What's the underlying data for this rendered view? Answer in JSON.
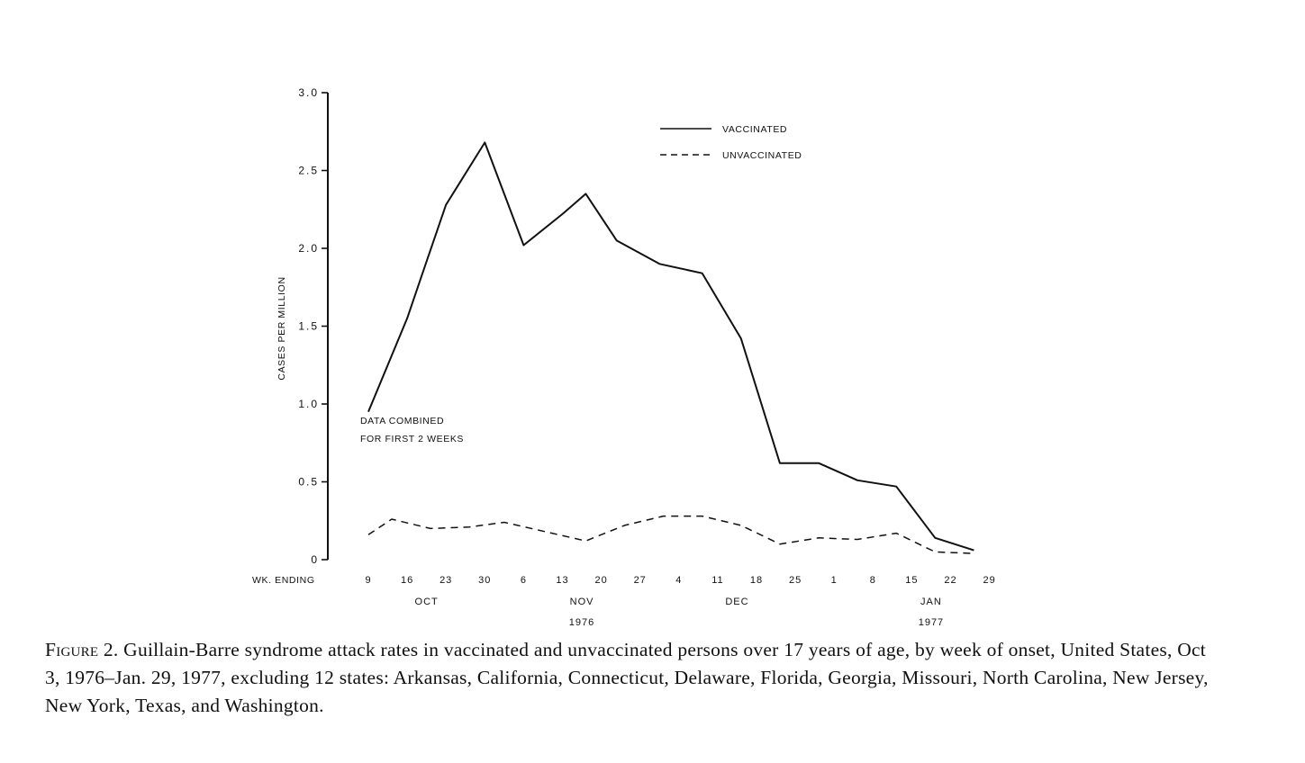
{
  "chart_data": {
    "type": "line",
    "ylabel": "CASES PER MILLION",
    "xlabel": "WK. ENDING",
    "ylim": [
      0,
      3.0
    ],
    "y_ticks": [
      {
        "value": 0,
        "label": "0"
      },
      {
        "value": 0.5,
        "label": "0.5"
      },
      {
        "value": 1.0,
        "label": "1.0"
      },
      {
        "value": 1.5,
        "label": "1.5"
      },
      {
        "value": 2.0,
        "label": "2.0"
      },
      {
        "value": 2.5,
        "label": "2.5"
      },
      {
        "value": 3.0,
        "label": "3.0"
      }
    ],
    "x_ticks": [
      "9",
      "16",
      "23",
      "30",
      "6",
      "13",
      "20",
      "27",
      "4",
      "11",
      "18",
      "25",
      "1",
      "8",
      "15",
      "22",
      "29"
    ],
    "month_labels": [
      {
        "label": "OCT",
        "at_tick": 1.5
      },
      {
        "label": "NOV",
        "at_tick": 5.5
      },
      {
        "label": "DEC",
        "at_tick": 9.5
      },
      {
        "label": "JAN",
        "at_tick": 14.5
      }
    ],
    "year_labels": [
      {
        "label": "1976",
        "at_tick": 5.5
      },
      {
        "label": "1977",
        "at_tick": 14.5
      }
    ],
    "legend": {
      "position": "top-right"
    },
    "series": [
      {
        "name": "VACCINATED",
        "style": "solid",
        "points": [
          {
            "x": 0.0,
            "y": 0.95
          },
          {
            "x": 1.0,
            "y": 1.55
          },
          {
            "x": 1.45,
            "y": 1.88
          },
          {
            "x": 2.0,
            "y": 2.28
          },
          {
            "x": 3.0,
            "y": 2.68
          },
          {
            "x": 4.0,
            "y": 2.02
          },
          {
            "x": 5.0,
            "y": 2.22
          },
          {
            "x": 5.6,
            "y": 2.35
          },
          {
            "x": 6.4,
            "y": 2.05
          },
          {
            "x": 7.5,
            "y": 1.9
          },
          {
            "x": 8.6,
            "y": 1.84
          },
          {
            "x": 9.6,
            "y": 1.42
          },
          {
            "x": 10.6,
            "y": 0.62
          },
          {
            "x": 11.6,
            "y": 0.62
          },
          {
            "x": 12.6,
            "y": 0.51
          },
          {
            "x": 13.6,
            "y": 0.47
          },
          {
            "x": 14.6,
            "y": 0.14
          },
          {
            "x": 15.6,
            "y": 0.06
          }
        ]
      },
      {
        "name": "UNVACCINATED",
        "style": "dashed",
        "points": [
          {
            "x": 0.0,
            "y": 0.16
          },
          {
            "x": 0.6,
            "y": 0.26
          },
          {
            "x": 1.6,
            "y": 0.2
          },
          {
            "x": 2.6,
            "y": 0.21
          },
          {
            "x": 3.5,
            "y": 0.24
          },
          {
            "x": 5.6,
            "y": 0.12
          },
          {
            "x": 6.6,
            "y": 0.22
          },
          {
            "x": 7.6,
            "y": 0.28
          },
          {
            "x": 8.6,
            "y": 0.28
          },
          {
            "x": 9.6,
            "y": 0.22
          },
          {
            "x": 10.6,
            "y": 0.1
          },
          {
            "x": 11.6,
            "y": 0.14
          },
          {
            "x": 12.6,
            "y": 0.13
          },
          {
            "x": 13.6,
            "y": 0.17
          },
          {
            "x": 14.6,
            "y": 0.05
          },
          {
            "x": 15.6,
            "y": 0.04
          }
        ]
      }
    ],
    "annotations": [
      {
        "text_lines": [
          "DATA COMBINED",
          "FOR FIRST 2 WEEKS"
        ]
      }
    ]
  },
  "caption": {
    "figure_label": "Figure 2.",
    "text": "Guillain-Barre syndrome attack rates in vaccinated and unvaccinated persons over 17 years of age, by week of onset, United States, Oct 3, 1976–Jan. 29, 1977, excluding 12 states: Arkansas, California, Connecticut, Delaware, Florida, Georgia, Missouri, North Carolina, New Jersey, New York, Texas, and Washington."
  }
}
